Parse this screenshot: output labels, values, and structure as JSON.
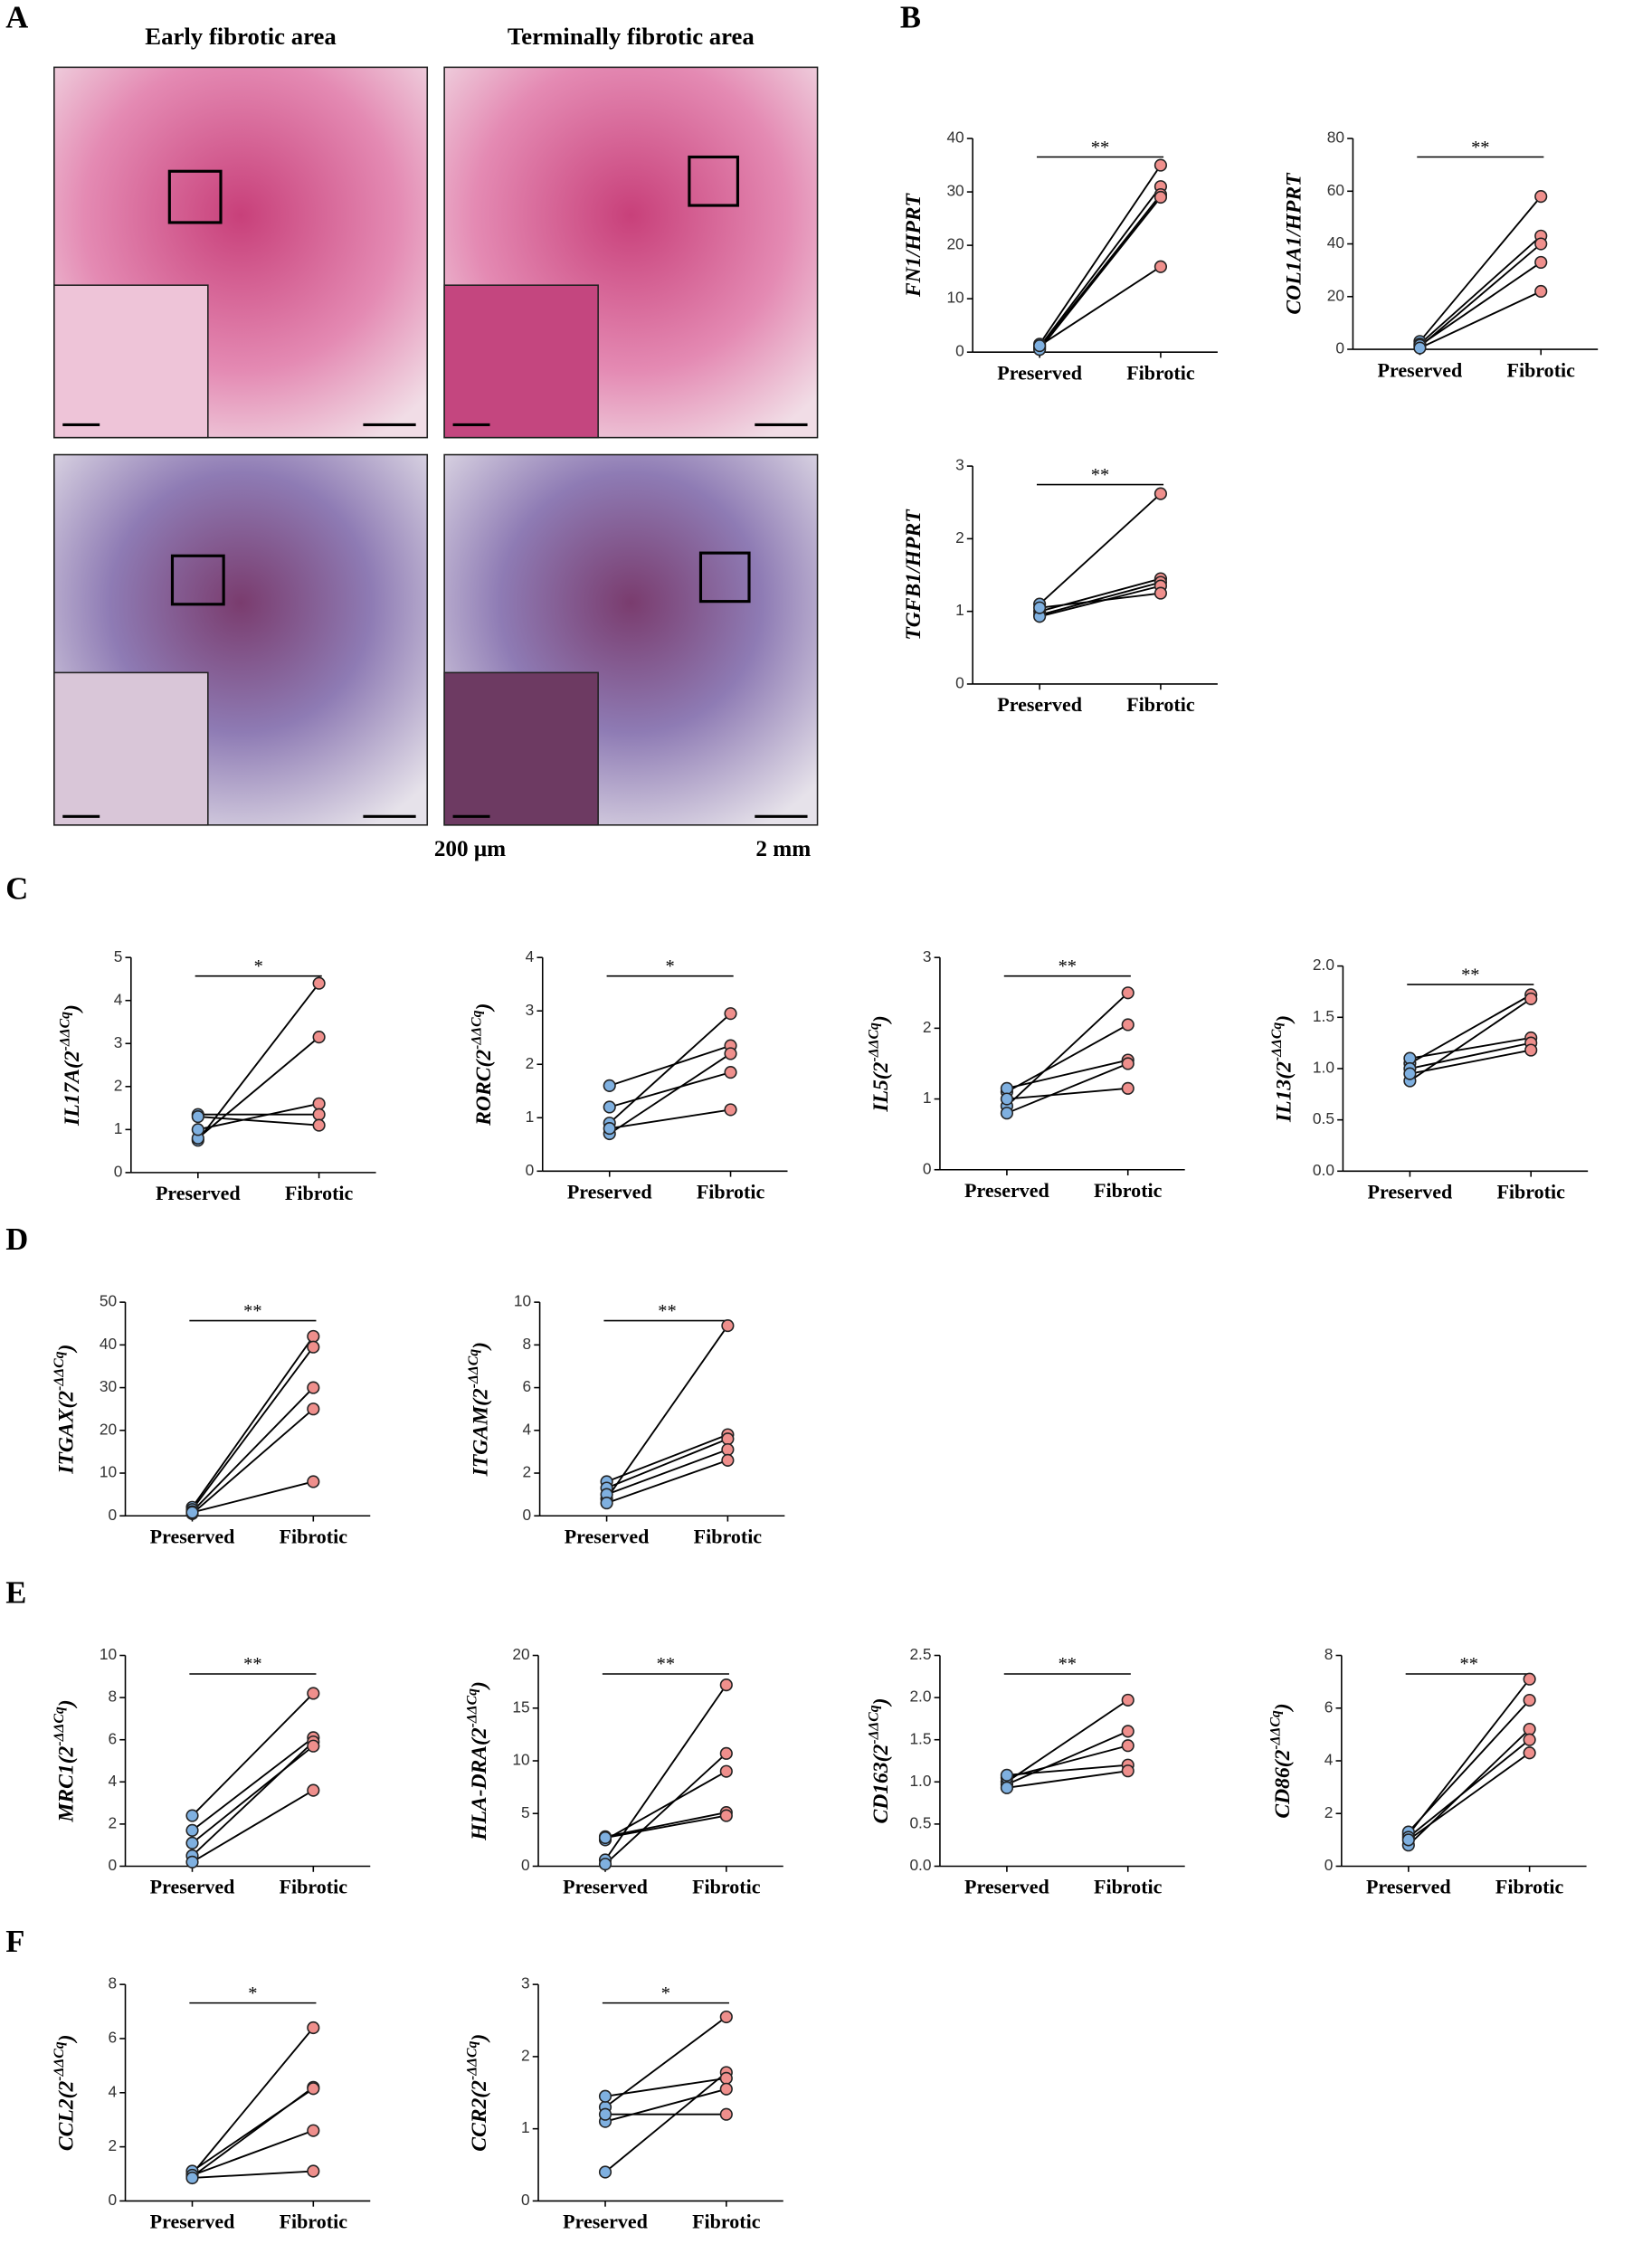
{
  "figure": {
    "panels": [
      "A",
      "B",
      "C",
      "D",
      "E",
      "F"
    ],
    "histology": {
      "columns": [
        "Early fibrotic area",
        "Terminally fibrotic area"
      ],
      "scale_bars": [
        "200 μm",
        "2 mm"
      ]
    }
  },
  "chart_data": [
    {
      "type": "paired",
      "ylabel": [
        "FN1/HPRT"
      ],
      "annotation": "**",
      "categories": [
        "Preserved",
        "Fibrotic"
      ],
      "colors": [
        "#7fb0e0",
        "#ef8f8c"
      ],
      "ylim": [
        0,
        40
      ],
      "yticks": [
        0,
        10,
        20,
        30,
        40
      ],
      "series": [
        {
          "values": [
            1.5,
            35
          ]
        },
        {
          "values": [
            1,
            31
          ]
        },
        {
          "values": [
            0.8,
            29.5
          ]
        },
        {
          "values": [
            0.5,
            29
          ]
        },
        {
          "values": [
            1.2,
            16
          ]
        }
      ]
    },
    {
      "type": "paired",
      "ylabel": [
        "COL1A1/HPRT"
      ],
      "annotation": "**",
      "categories": [
        "Preserved",
        "Fibrotic"
      ],
      "colors": [
        "#7fb0e0",
        "#ef8f8c"
      ],
      "ylim": [
        0,
        80
      ],
      "yticks": [
        0,
        20,
        40,
        60,
        80
      ],
      "series": [
        {
          "values": [
            3,
            58
          ]
        },
        {
          "values": [
            2,
            43
          ]
        },
        {
          "values": [
            1,
            40
          ]
        },
        {
          "values": [
            1.5,
            33
          ]
        },
        {
          "values": [
            0.5,
            22
          ]
        }
      ]
    },
    {
      "type": "paired",
      "ylabel": [
        "TGFB1/HPRT"
      ],
      "annotation": "**",
      "categories": [
        "Preserved",
        "Fibrotic"
      ],
      "colors": [
        "#7fb0e0",
        "#ef8f8c"
      ],
      "ylim": [
        0,
        3
      ],
      "yticks": [
        0,
        1,
        2,
        3
      ],
      "series": [
        {
          "values": [
            1.1,
            2.62
          ]
        },
        {
          "values": [
            1.0,
            1.45
          ]
        },
        {
          "values": [
            0.95,
            1.4
          ]
        },
        {
          "values": [
            0.93,
            1.35
          ]
        },
        {
          "values": [
            1.05,
            1.25
          ]
        }
      ]
    },
    {
      "type": "paired",
      "ylabel": [
        "IL17A(2",
        "-ΔΔCq",
        ")"
      ],
      "annotation": "*",
      "categories": [
        "Preserved",
        "Fibrotic"
      ],
      "colors": [
        "#7fb0e0",
        "#ef8f8c"
      ],
      "ylim": [
        0,
        5
      ],
      "yticks": [
        0,
        1,
        2,
        3,
        4,
        5
      ],
      "series": [
        {
          "values": [
            0.75,
            4.4
          ]
        },
        {
          "values": [
            0.8,
            3.15
          ]
        },
        {
          "values": [
            1.0,
            1.6
          ]
        },
        {
          "values": [
            1.35,
            1.35
          ]
        },
        {
          "values": [
            1.3,
            1.1
          ]
        }
      ]
    },
    {
      "type": "paired",
      "ylabel": [
        "RORC(2",
        "-ΔΔCq",
        ")"
      ],
      "annotation": "*",
      "categories": [
        "Preserved",
        "Fibrotic"
      ],
      "colors": [
        "#7fb0e0",
        "#ef8f8c"
      ],
      "ylim": [
        0,
        4
      ],
      "yticks": [
        0,
        1,
        2,
        3,
        4
      ],
      "series": [
        {
          "values": [
            0.9,
            2.95
          ]
        },
        {
          "values": [
            1.6,
            2.35
          ]
        },
        {
          "values": [
            0.7,
            2.2
          ]
        },
        {
          "values": [
            1.2,
            1.85
          ]
        },
        {
          "values": [
            0.8,
            1.15
          ]
        }
      ]
    },
    {
      "type": "paired",
      "ylabel": [
        "IL5(2",
        "-ΔΔCq",
        ")"
      ],
      "annotation": "**",
      "categories": [
        "Preserved",
        "Fibrotic"
      ],
      "colors": [
        "#7fb0e0",
        "#ef8f8c"
      ],
      "ylim": [
        0,
        3
      ],
      "yticks": [
        0,
        1,
        2,
        3
      ],
      "series": [
        {
          "values": [
            0.9,
            2.5
          ]
        },
        {
          "values": [
            1.1,
            2.05
          ]
        },
        {
          "values": [
            1.15,
            1.55
          ]
        },
        {
          "values": [
            0.8,
            1.5
          ]
        },
        {
          "values": [
            1.0,
            1.15
          ]
        }
      ]
    },
    {
      "type": "paired",
      "ylabel": [
        "IL13(2",
        "-ΔΔCq",
        ")"
      ],
      "annotation": "**",
      "categories": [
        "Preserved",
        "Fibrotic"
      ],
      "colors": [
        "#7fb0e0",
        "#ef8f8c"
      ],
      "ylim": [
        0,
        2
      ],
      "yticks": [
        {
          "value": 0,
          "label": "0.0"
        },
        {
          "value": 0.5,
          "label": "0.5"
        },
        {
          "value": 1,
          "label": "1.0"
        },
        {
          "value": 1.5,
          "label": "1.5"
        },
        {
          "value": 2,
          "label": "2.0"
        }
      ],
      "series": [
        {
          "values": [
            1.05,
            1.72
          ]
        },
        {
          "values": [
            0.88,
            1.68
          ]
        },
        {
          "values": [
            1.1,
            1.3
          ]
        },
        {
          "values": [
            1.0,
            1.25
          ]
        },
        {
          "values": [
            0.95,
            1.18
          ]
        }
      ]
    },
    {
      "type": "paired",
      "ylabel": [
        "ITGAX(2",
        "-ΔΔCq",
        ")"
      ],
      "annotation": "**",
      "categories": [
        "Preserved",
        "Fibrotic"
      ],
      "colors": [
        "#7fb0e0",
        "#ef8f8c"
      ],
      "ylim": [
        0,
        50
      ],
      "yticks": [
        0,
        10,
        20,
        30,
        40,
        50
      ],
      "series": [
        {
          "values": [
            2,
            42
          ]
        },
        {
          "values": [
            1.5,
            39.5
          ]
        },
        {
          "values": [
            1,
            30
          ]
        },
        {
          "values": [
            0.5,
            25
          ]
        },
        {
          "values": [
            0.8,
            8
          ]
        }
      ]
    },
    {
      "type": "paired",
      "ylabel": [
        "ITGAM(2",
        "-ΔΔCq",
        ")"
      ],
      "annotation": "**",
      "categories": [
        "Preserved",
        "Fibrotic"
      ],
      "colors": [
        "#7fb0e0",
        "#ef8f8c"
      ],
      "ylim": [
        0,
        10
      ],
      "yticks": [
        0,
        2,
        4,
        6,
        8,
        10
      ],
      "series": [
        {
          "values": [
            0.8,
            8.9
          ]
        },
        {
          "values": [
            1.6,
            3.8
          ]
        },
        {
          "values": [
            1.3,
            3.6
          ]
        },
        {
          "values": [
            1.0,
            3.1
          ]
        },
        {
          "values": [
            0.6,
            2.6
          ]
        }
      ]
    },
    {
      "type": "paired",
      "ylabel": [
        "MRC1(2",
        "-ΔΔCq",
        ")"
      ],
      "annotation": "**",
      "categories": [
        "Preserved",
        "Fibrotic"
      ],
      "colors": [
        "#7fb0e0",
        "#ef8f8c"
      ],
      "ylim": [
        0,
        10
      ],
      "yticks": [
        0,
        2,
        4,
        6,
        8,
        10
      ],
      "series": [
        {
          "values": [
            2.4,
            8.2
          ]
        },
        {
          "values": [
            1.7,
            6.1
          ]
        },
        {
          "values": [
            0.5,
            5.9
          ]
        },
        {
          "values": [
            1.1,
            5.7
          ]
        },
        {
          "values": [
            0.2,
            3.6
          ]
        }
      ]
    },
    {
      "type": "paired",
      "ylabel": [
        "HLA-DRA(2",
        "-ΔΔCq",
        ")"
      ],
      "annotation": "**",
      "categories": [
        "Preserved",
        "Fibrotic"
      ],
      "colors": [
        "#7fb0e0",
        "#ef8f8c"
      ],
      "ylim": [
        0,
        20
      ],
      "yticks": [
        0,
        5,
        10,
        15,
        20
      ],
      "series": [
        {
          "values": [
            0.6,
            17.2
          ]
        },
        {
          "values": [
            0.2,
            10.7
          ]
        },
        {
          "values": [
            2.5,
            9
          ]
        },
        {
          "values": [
            2.8,
            5.1
          ]
        },
        {
          "values": [
            2.7,
            4.8
          ]
        }
      ]
    },
    {
      "type": "paired",
      "ylabel": [
        "CD163(2",
        "-ΔΔCq",
        ")"
      ],
      "annotation": "**",
      "categories": [
        "Preserved",
        "Fibrotic"
      ],
      "colors": [
        "#7fb0e0",
        "#ef8f8c"
      ],
      "ylim": [
        0,
        2.5
      ],
      "yticks": [
        {
          "value": 0,
          "label": "0.0"
        },
        {
          "value": 0.5,
          "label": "0.5"
        },
        {
          "value": 1,
          "label": "1.0"
        },
        {
          "value": 1.5,
          "label": "1.5"
        },
        {
          "value": 2,
          "label": "2.0"
        },
        {
          "value": 2.5,
          "label": "2.5"
        }
      ],
      "series": [
        {
          "values": [
            1.0,
            1.97
          ]
        },
        {
          "values": [
            0.97,
            1.6
          ]
        },
        {
          "values": [
            1.05,
            1.43
          ]
        },
        {
          "values": [
            1.08,
            1.2
          ]
        },
        {
          "values": [
            0.93,
            1.13
          ]
        }
      ]
    },
    {
      "type": "paired",
      "ylabel": [
        "CD86(2",
        "-ΔΔCq",
        ")"
      ],
      "annotation": "**",
      "categories": [
        "Preserved",
        "Fibrotic"
      ],
      "colors": [
        "#7fb0e0",
        "#ef8f8c"
      ],
      "ylim": [
        0,
        8
      ],
      "yticks": [
        0,
        2,
        4,
        6,
        8
      ],
      "series": [
        {
          "values": [
            1.2,
            7.1
          ]
        },
        {
          "values": [
            1.3,
            6.3
          ]
        },
        {
          "values": [
            0.8,
            5.2
          ]
        },
        {
          "values": [
            1.1,
            4.8
          ]
        },
        {
          "values": [
            1.0,
            4.3
          ]
        }
      ]
    },
    {
      "type": "paired",
      "ylabel": [
        "CCL2(2",
        "-ΔΔCq",
        ")"
      ],
      "annotation": "*",
      "categories": [
        "Preserved",
        "Fibrotic"
      ],
      "colors": [
        "#7fb0e0",
        "#ef8f8c"
      ],
      "ylim": [
        0,
        8
      ],
      "yticks": [
        0,
        2,
        4,
        6,
        8
      ],
      "series": [
        {
          "values": [
            1.0,
            6.4
          ]
        },
        {
          "values": [
            0.9,
            4.2
          ]
        },
        {
          "values": [
            1.1,
            4.15
          ]
        },
        {
          "values": [
            0.95,
            2.6
          ]
        },
        {
          "values": [
            0.85,
            1.1
          ]
        }
      ]
    },
    {
      "type": "paired",
      "ylabel": [
        "CCR2(2",
        "-ΔΔCq",
        ")"
      ],
      "annotation": "*",
      "categories": [
        "Preserved",
        "Fibrotic"
      ],
      "colors": [
        "#7fb0e0",
        "#ef8f8c"
      ],
      "ylim": [
        0,
        3
      ],
      "yticks": [
        0,
        1,
        2,
        3
      ],
      "series": [
        {
          "values": [
            1.3,
            2.55
          ]
        },
        {
          "values": [
            0.4,
            1.78
          ]
        },
        {
          "values": [
            1.45,
            1.7
          ]
        },
        {
          "values": [
            1.1,
            1.55
          ]
        },
        {
          "values": [
            1.2,
            1.2
          ]
        }
      ]
    }
  ]
}
